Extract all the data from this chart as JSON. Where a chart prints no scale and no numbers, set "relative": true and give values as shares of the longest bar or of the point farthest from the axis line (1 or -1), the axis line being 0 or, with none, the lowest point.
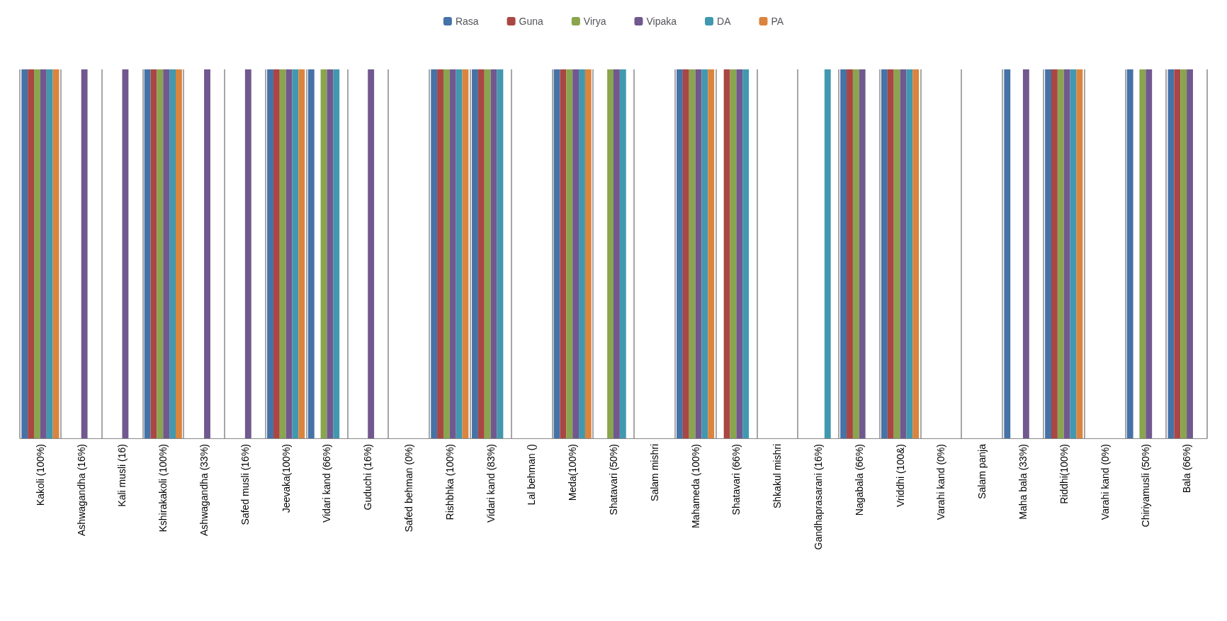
{
  "chart_data": {
    "type": "bar",
    "relative": true,
    "grid": "x",
    "legend": "top",
    "categories": [
      "Kakoli (100%)",
      "Ashwagandha (16%)",
      "Kali musli (16)",
      "Kshirakakoli (100%)",
      "Ashwagandha (33%)",
      "Safed musli (16%)",
      "Jeevaka(100%)",
      "Vidari kand (66%)",
      "Guduchi (16%)",
      "Safed behman (0%)",
      "Rishbhka (100%)",
      "Vidari kand (83%)",
      "Lal behman ()",
      "Meda(100%)",
      "Shatavari (50%)",
      "Salam mishri",
      "Mahameda (100%)",
      "Shatavari (66%)",
      "Shkakul mishri",
      "Gandhaprasarani (16%)",
      "Nagabala (66%)",
      "Vriddhi (100&)",
      "Varahi kand (0%)",
      "Salam panja",
      "Maha bala (33%)",
      "Riddhi(100%)",
      "Varahi kand (0%)",
      "Chiriyamusli (50%)",
      "Bala (66%)"
    ],
    "series": [
      {
        "name": "Rasa",
        "color": "#4572a7",
        "values": [
          1,
          null,
          null,
          1,
          null,
          null,
          1,
          1,
          null,
          null,
          1,
          1,
          null,
          1,
          null,
          null,
          1,
          null,
          null,
          null,
          1,
          1,
          null,
          null,
          1,
          1,
          null,
          1,
          1
        ]
      },
      {
        "name": "Guna",
        "color": "#aa4643",
        "values": [
          1,
          null,
          null,
          1,
          null,
          null,
          1,
          null,
          null,
          null,
          1,
          1,
          null,
          1,
          null,
          null,
          1,
          1,
          null,
          null,
          1,
          1,
          null,
          null,
          null,
          1,
          null,
          null,
          1
        ]
      },
      {
        "name": "Virya",
        "color": "#89a54e",
        "values": [
          1,
          null,
          null,
          1,
          null,
          null,
          1,
          1,
          null,
          null,
          1,
          1,
          null,
          1,
          1,
          null,
          1,
          1,
          null,
          null,
          1,
          1,
          null,
          null,
          null,
          1,
          null,
          1,
          1
        ]
      },
      {
        "name": "Vipaka",
        "color": "#71588f",
        "values": [
          1,
          1,
          1,
          1,
          1,
          1,
          1,
          1,
          1,
          null,
          1,
          1,
          null,
          1,
          1,
          null,
          1,
          1,
          null,
          null,
          1,
          1,
          null,
          null,
          1,
          1,
          null,
          1,
          1
        ]
      },
      {
        "name": "DA",
        "color": "#4198af",
        "values": [
          1,
          null,
          null,
          1,
          null,
          null,
          1,
          1,
          null,
          null,
          1,
          1,
          null,
          1,
          1,
          null,
          1,
          1,
          null,
          1,
          null,
          1,
          null,
          null,
          null,
          1,
          null,
          null,
          null
        ]
      },
      {
        "name": "PA",
        "color": "#db843d",
        "values": [
          1,
          null,
          null,
          1,
          null,
          null,
          1,
          null,
          null,
          null,
          1,
          null,
          null,
          1,
          null,
          null,
          1,
          null,
          null,
          null,
          null,
          1,
          null,
          null,
          null,
          1,
          null,
          null,
          null
        ]
      }
    ]
  }
}
